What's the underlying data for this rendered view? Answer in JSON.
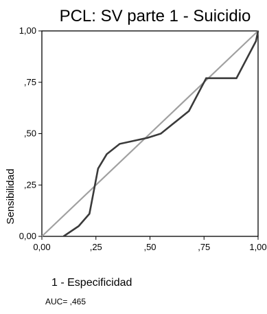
{
  "chart_data": {
    "type": "line",
    "title": "PCL: SV parte 1 - Suicidio",
    "xlabel": "1 - Especificidad",
    "ylabel": "Sensibilidad",
    "xlim": [
      0,
      1
    ],
    "ylim": [
      0,
      1
    ],
    "x_ticks": [
      "0,00",
      ",25",
      ",50",
      ",75",
      "1,00"
    ],
    "y_ticks": [
      "0,00",
      ",25",
      ",50",
      ",75",
      "1,00"
    ],
    "grid": false,
    "annotation": "AUC= ,465",
    "series": [
      {
        "role": "roc-curve",
        "color": "#3a3a3a",
        "x": [
          0.1,
          0.17,
          0.22,
          0.26,
          0.3,
          0.36,
          0.49,
          0.55,
          0.68,
          0.76,
          0.9,
          0.99,
          1.0
        ],
        "y": [
          0.0,
          0.05,
          0.11,
          0.33,
          0.4,
          0.45,
          0.48,
          0.5,
          0.61,
          0.77,
          0.77,
          0.95,
          1.0
        ]
      },
      {
        "role": "reference-line",
        "color": "#a0a0a0",
        "x": [
          0,
          1
        ],
        "y": [
          0,
          1
        ]
      }
    ]
  }
}
